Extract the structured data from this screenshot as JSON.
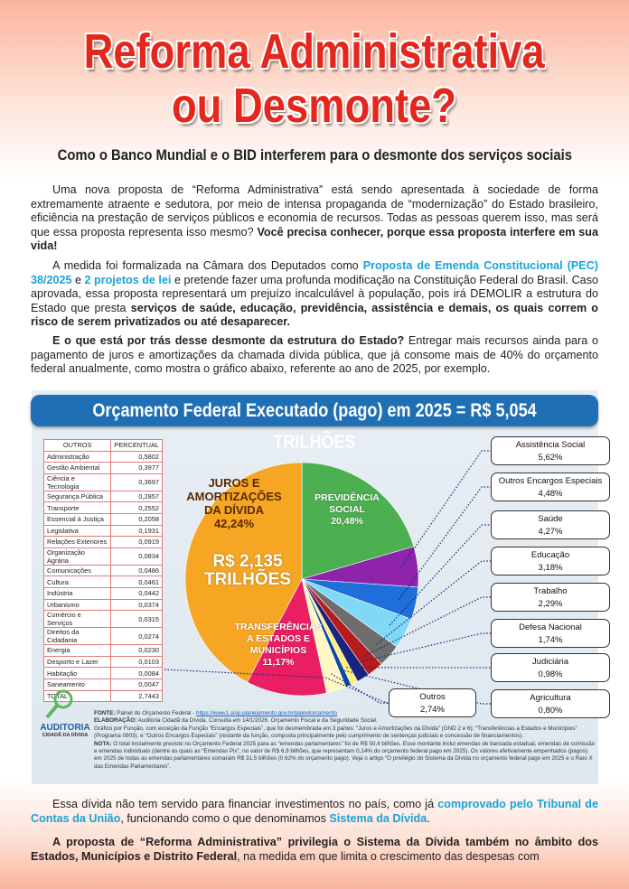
{
  "header": {
    "title": [
      "Reforma Administrativa",
      "ou Desmonte?"
    ],
    "subtitle": "Como o Banco Mundial e o BID interferem para o desmonte dos serviços sociais"
  },
  "intro_paragraphs": [
    [
      {
        "text": "Uma nova proposta de “Reforma Administrativa” está sendo apresentada à sociedade de forma extremamente atraente e sedutora, por meio de intensa propaganda de “modernização” do Estado brasileiro, eficiência na prestação de serviços públicos e economia de recursos. Todas as pessoas querem isso, mas será que essa proposta representa isso mesmo? ",
        "style": "normal"
      },
      {
        "text": "Você precisa conhecer, porque essa proposta interfere em sua vida!",
        "style": "bold"
      }
    ],
    [
      {
        "text": "A medida foi formalizada na Câmara dos Deputados como ",
        "style": "normal"
      },
      {
        "text": "Proposta de Emenda Constitucional (PEC) 38/2025",
        "style": "link"
      },
      {
        "text": " e ",
        "style": "normal"
      },
      {
        "text": "2 projetos de lei",
        "style": "link"
      },
      {
        "text": " e pretende fazer uma profunda modificação na Constituição Federal do Brasil. Caso aprovada, essa proposta representará um prejuízo incalculável à população, pois irá DEMOLIR a estrutura do Estado que presta ",
        "style": "normal"
      },
      {
        "text": "serviços de saúde, educação, previdência, assistência e demais, os quais correm o risco de serem privatizados ou até desaparecer.",
        "style": "bold"
      }
    ],
    [
      {
        "text": "E o que está por trás desse desmonte da estrutura do Estado?",
        "style": "bold"
      },
      {
        "text": " Entregar mais recursos ainda para o pagamento de juros e amortizações da chamada dívida pública, que já consome mais de 40% do orçamento federal anualmente, como mostra o gráfico abaixo, referente ao ano de 2025, por exemplo.",
        "style": "normal"
      }
    ]
  ],
  "chart_data": {
    "type": "pie",
    "title": "Orçamento Federal Executado (pago) em 2025 = R$ 5,054 TRILHÕES",
    "categories": [
      "PREVIDÊNCIA SOCIAL",
      "Assistência Social",
      "Outros Encargos Especiais",
      "Saúde",
      "Educação",
      "Trabalho",
      "Defesa Nacional",
      "Judiciária",
      "Agricultura",
      "Outros",
      "TRANSFERÊNCIAS A ESTADOS E MUNICÍPIOS",
      "JUROS E AMORTIZAÇÕES DA DÍVIDA"
    ],
    "values": [
      20.48,
      5.62,
      4.48,
      4.27,
      3.18,
      2.29,
      1.74,
      0.98,
      0.8,
      2.74,
      11.17,
      42.24
    ],
    "value_labels": [
      "20,48%",
      "5,62%",
      "4,48%",
      "4,27%",
      "3,18%",
      "2,29%",
      "1,74%",
      "0,98%",
      "0,80%",
      "2,74%",
      "11,17%",
      "42,24%"
    ],
    "colors": [
      "#4caf50",
      "#8e24aa",
      "#1e6fd9",
      "#80d8f7",
      "#6d6d6d",
      "#b71c1c",
      "#1a237e",
      "#fff176",
      "#0d47a1",
      "#fff9c4",
      "#e91e63",
      "#f6a623"
    ],
    "annotation": "R$ 2,135 TRILHÕES"
  },
  "outros_table": {
    "columns": [
      "OUTROS",
      "PERCENTUAL"
    ],
    "rows": [
      [
        "Administração",
        "0,5802"
      ],
      [
        "Gestão Ambiental",
        "0,3977"
      ],
      [
        "Ciência e Tecnologia",
        "0,3697"
      ],
      [
        "Segurança Pública",
        "0,2857"
      ],
      [
        "Transporte",
        "0,2552"
      ],
      [
        "Essencial à Justiça",
        "0,2058"
      ],
      [
        "Legislativa",
        "0,1931"
      ],
      [
        "Relações Exteriores",
        "0,0919"
      ],
      [
        "Organização Agrária",
        "0,0834"
      ],
      [
        "Comunicações",
        "0,0486"
      ],
      [
        "Cultura",
        "0,0461"
      ],
      [
        "Indústria",
        "0,0442"
      ],
      [
        "Urbanismo",
        "0,0374"
      ],
      [
        "Comércio e Serviços",
        "0,0315"
      ],
      [
        "Direitos da Cidadania",
        "0,0274"
      ],
      [
        "Energia",
        "0,0230"
      ],
      [
        "Desporto e Lazer",
        "0,0103"
      ],
      [
        "Habitação",
        "0,0084"
      ],
      [
        "Saneamento",
        "0,0047"
      ],
      [
        "TOTAL",
        "2,7443"
      ]
    ]
  },
  "logo": {
    "name": "AUDITORIA",
    "subname": "CIDADÃ DA DÍVIDA"
  },
  "notes": [
    [
      {
        "text": "FONTE:",
        "style": "bold"
      },
      {
        "text": " Painel do Orçamento Federal - ",
        "style": "normal"
      },
      {
        "text": "https://www1.siop.planejamento.gov.br/painelorcamento",
        "style": "url"
      }
    ],
    [
      {
        "text": "ELABORAÇÃO:",
        "style": "bold"
      },
      {
        "text": " Auditoria Cidadã da Dívida. Consulta em 14/1/2026. Orçamento Fiscal e da Seguridade Social.",
        "style": "normal"
      }
    ],
    [
      {
        "text": "Gráfico por Função, com exceção da Função “Encargos Especiais”, que foi desmembrada em 3 partes: “Juros e Amortizações da Dívida” (GND 2 e 6); “Transferências a Estados e Municípios” (Programa 0903), e “Outros Encargos Especiais” (restante da função, composta principalmente pelo cumprimento de sentenças judiciais e concessão de financiamentos).",
        "style": "normal"
      }
    ],
    [
      {
        "text": "NOTA:",
        "style": "bold"
      },
      {
        "text": " O total inicialmente previsto no Orçamento Federal 2025 para as “emendas parlamentares” foi de R$ 50,4 bilhões. Esse montante inclui emendas de bancada estadual, emendas de comissão e emendas individuais (dentre as quais as “Emendas Pix”, no valor de R$ 6,9 bilhões, que representam 0,14% do orçamento federal pago em 2025). Os valores efetivamente empenhados (pagos) em 2025 de todas as emendas parlamentares somaram R$ 31,5 bilhões (0,62% do orçamento pago). Veja o artigo “O privilégio do Sistema da Dívida no orçamento federal pago em 2025 e o Raio X das Emendas Parlamentares”.",
        "style": "normal"
      }
    ]
  ],
  "closing_paragraphs": [
    [
      {
        "text": "Essa dívida não tem servido para financiar investimentos no país, como já ",
        "style": "normal"
      },
      {
        "text": "comprovado pelo Tribunal de Contas da União",
        "style": "link"
      },
      {
        "text": ", funcionando como o que denominamos ",
        "style": "normal"
      },
      {
        "text": "Sistema da Dívida",
        "style": "link"
      },
      {
        "text": ".",
        "style": "normal"
      }
    ],
    [
      {
        "text": "A proposta de “Reforma Administrativa” privilegia o Sistema da Dívida também no âmbito dos Estados, Municípios e Distrito Federal",
        "style": "bold"
      },
      {
        "text": ", na medida em que limita o crescimento das despesas com",
        "style": "normal"
      }
    ]
  ]
}
